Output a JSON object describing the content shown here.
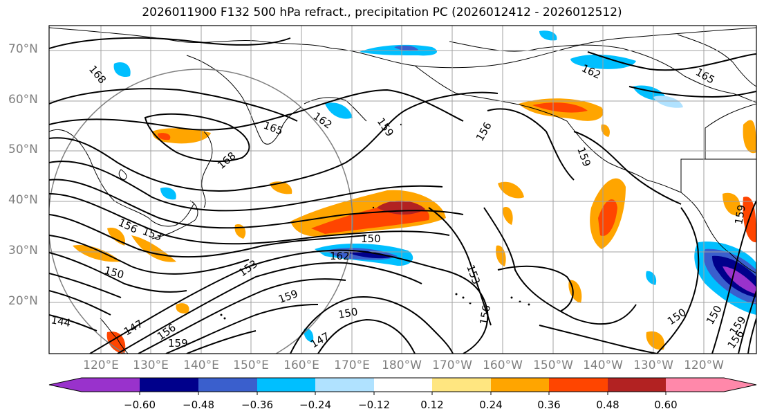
{
  "title": "2026011900 F132 500 hPa refract., precipitation PC (2026012412 - 2026012512)",
  "lat_labels": [
    "70°N",
    "60°N",
    "50°N",
    "40°N",
    "30°N",
    "20°N"
  ],
  "lon_labels": [
    "120°E",
    "130°E",
    "140°E",
    "150°E",
    "160°E",
    "170°E",
    "180°W",
    "170°W",
    "160°W",
    "150°W",
    "140°W",
    "130°W",
    "120°W"
  ],
  "contour_labels": [
    "168",
    "168",
    "165",
    "162",
    "159",
    "159",
    "156",
    "159",
    "162",
    "165",
    "156",
    "150",
    "150",
    "153",
    "162",
    "150",
    "153",
    "156",
    "159",
    "150",
    "147",
    "156",
    "159",
    "144",
    "147",
    "150",
    "153",
    "156",
    "159"
  ],
  "colorbar": {
    "ticks": [
      "−0.60",
      "−0.48",
      "−0.36",
      "−0.24",
      "−0.12",
      "0.12",
      "0.24",
      "0.36",
      "0.48",
      "0.60"
    ],
    "colors": [
      "#9932cc",
      "#00008b",
      "#3a5fcd",
      "#00bfff",
      "#b0e2ff",
      "#ffffff",
      "#ffe680",
      "#ffa500",
      "#ff4500",
      "#b22222",
      "#ff88aa"
    ]
  }
}
